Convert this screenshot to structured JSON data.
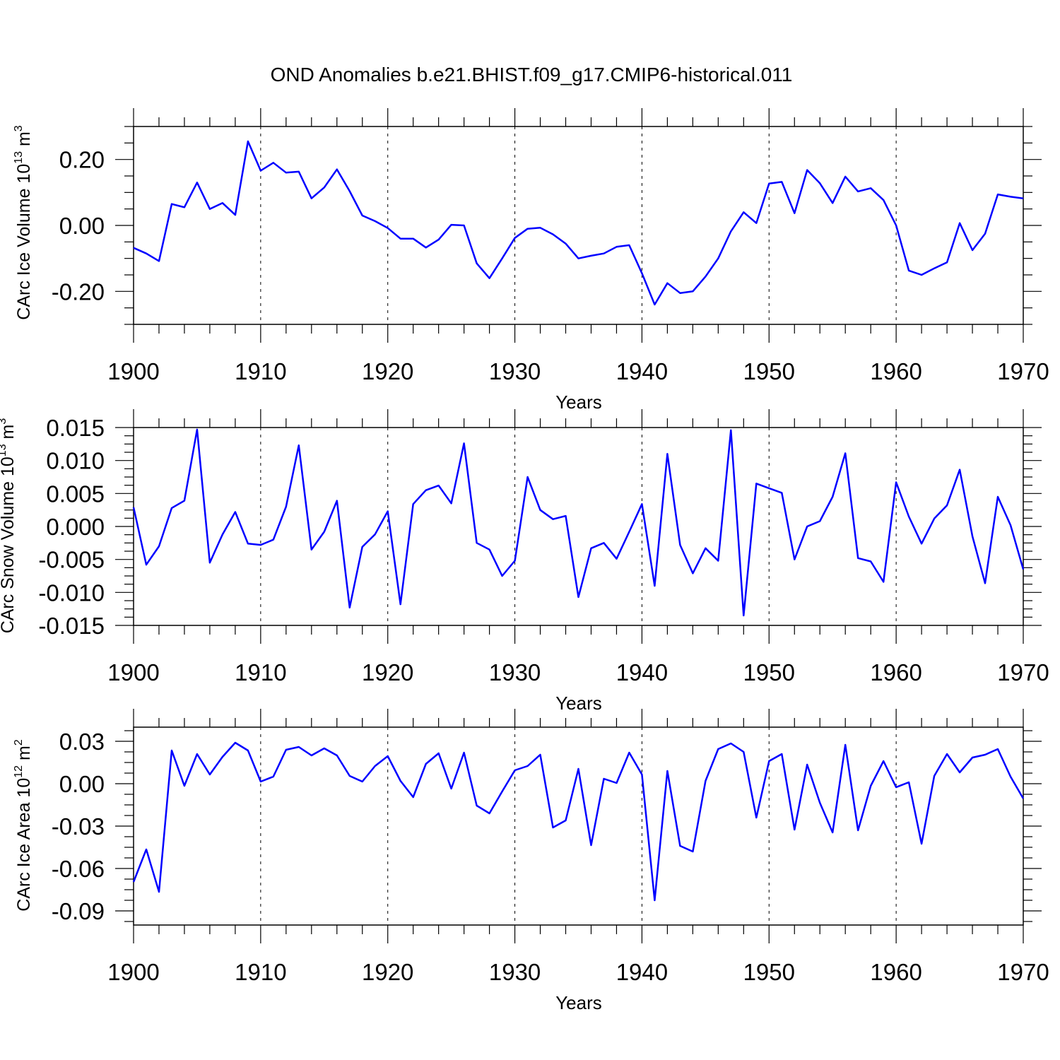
{
  "title": "OND Anomalies b.e21.BHIST.f09_g17.CMIP6-historical.011",
  "colors": {
    "line": "#0000ff",
    "axis": "#000000",
    "grid": "#000000",
    "background": "#ffffff"
  },
  "chart_data": [
    {
      "type": "line",
      "title": "OND Anomalies b.e21.BHIST.f09_g17.CMIP6-historical.011",
      "ylabel": "CArc Ice Volume 10",
      "ylabel_exp": "13",
      "ylabel_unit": "m",
      "ylabel_unit_exp": "3",
      "xlabel": "Years",
      "xlim": [
        1900,
        1970
      ],
      "ylim": [
        -0.3,
        0.3
      ],
      "x_ticks": [
        "1900",
        "1910",
        "1920",
        "1930",
        "1940",
        "1950",
        "1960",
        "1970"
      ],
      "y_ticks": [
        "0.20",
        "0.00",
        "-0.20"
      ],
      "y_tick_values": [
        0.2,
        0.0,
        -0.2
      ],
      "grid": "vertical dashed at decades",
      "x_start": 1900,
      "values": [
        -0.068,
        -0.085,
        -0.108,
        0.065,
        0.055,
        0.13,
        0.05,
        0.068,
        0.032,
        0.255,
        0.166,
        0.19,
        0.16,
        0.163,
        0.082,
        0.115,
        0.17,
        0.104,
        0.03,
        0.013,
        -0.008,
        -0.04,
        -0.04,
        -0.067,
        -0.043,
        0.002,
        0.0,
        -0.115,
        -0.16,
        -0.1,
        -0.038,
        -0.01,
        -0.007,
        -0.027,
        -0.055,
        -0.1,
        -0.092,
        -0.085,
        -0.065,
        -0.06,
        -0.145,
        -0.24,
        -0.175,
        -0.205,
        -0.2,
        -0.155,
        -0.1,
        -0.018,
        0.04,
        0.007,
        0.127,
        0.132,
        0.037,
        0.168,
        0.128,
        0.068,
        0.148,
        0.103,
        0.113,
        0.077,
        0.0,
        -0.137,
        -0.15,
        -0.13,
        -0.112,
        0.007,
        -0.075,
        -0.025,
        0.094,
        0.087,
        0.082
      ]
    },
    {
      "type": "line",
      "ylabel": "CArc Snow Volume 10",
      "ylabel_exp": "13",
      "ylabel_unit": "m",
      "ylabel_unit_exp": "3",
      "xlabel": "Years",
      "xlim": [
        1900,
        1970
      ],
      "ylim": [
        -0.015,
        0.015
      ],
      "x_ticks": [
        "1900",
        "1910",
        "1920",
        "1930",
        "1940",
        "1950",
        "1960",
        "1970"
      ],
      "y_ticks": [
        "0.015",
        "0.010",
        "0.005",
        "0.000",
        "-0.005",
        "-0.010",
        "-0.015"
      ],
      "y_tick_values": [
        0.015,
        0.01,
        0.005,
        0.0,
        -0.005,
        -0.01,
        -0.015
      ],
      "grid": "vertical dashed at decades",
      "x_start": 1900,
      "values": [
        0.0029,
        -0.0058,
        -0.003,
        0.0028,
        0.0039,
        0.0147,
        -0.0055,
        -0.0012,
        0.0022,
        -0.0026,
        -0.0028,
        -0.002,
        0.003,
        0.0123,
        -0.0035,
        -0.0008,
        0.0039,
        -0.0123,
        -0.0031,
        -0.0012,
        0.0023,
        -0.0118,
        0.0034,
        0.0055,
        0.0062,
        0.0035,
        0.0126,
        -0.0025,
        -0.0035,
        -0.0075,
        -0.0052,
        0.0075,
        0.0025,
        0.0011,
        0.0016,
        -0.0107,
        -0.0033,
        -0.0025,
        -0.0049,
        -0.0008,
        0.0034,
        -0.009,
        0.011,
        -0.0028,
        -0.0071,
        -0.0033,
        -0.0052,
        0.0146,
        -0.0135,
        0.0065,
        0.0058,
        0.0051,
        -0.005,
        0.0,
        0.0008,
        0.0045,
        0.0111,
        -0.0048,
        -0.0053,
        -0.0084,
        0.0067,
        0.0015,
        -0.0026,
        0.0012,
        0.0032,
        0.0086,
        -0.0015,
        -0.0086,
        0.0045,
        0.0002,
        -0.0065
      ]
    },
    {
      "type": "line",
      "ylabel": "CArc Ice Area 10",
      "ylabel_exp": "12",
      "ylabel_unit": "m",
      "ylabel_unit_exp": "2",
      "xlabel": "Years",
      "xlim": [
        1900,
        1970
      ],
      "ylim": [
        -0.1,
        0.04
      ],
      "x_ticks": [
        "1900",
        "1910",
        "1920",
        "1930",
        "1940",
        "1950",
        "1960",
        "1970"
      ],
      "y_ticks": [
        "0.03",
        "0.00",
        "-0.03",
        "-0.06",
        "-0.09"
      ],
      "y_tick_values": [
        0.03,
        0.0,
        -0.03,
        -0.06,
        -0.09
      ],
      "grid": "vertical dashed at decades",
      "x_start": 1900,
      "values": [
        -0.0695,
        -0.0465,
        -0.0765,
        0.0235,
        -0.0015,
        0.021,
        0.0065,
        0.019,
        0.029,
        0.0235,
        0.0015,
        0.005,
        0.024,
        0.026,
        0.02,
        0.025,
        0.02,
        0.0055,
        0.0015,
        0.0125,
        0.0195,
        0.002,
        -0.0095,
        0.014,
        0.0215,
        -0.0035,
        0.022,
        -0.0155,
        -0.021,
        -0.0055,
        0.0095,
        0.0125,
        0.0205,
        -0.031,
        -0.026,
        0.0105,
        -0.0435,
        0.0035,
        0.0005,
        0.022,
        0.0065,
        -0.0825,
        0.009,
        -0.044,
        -0.048,
        0.002,
        0.0245,
        0.0285,
        0.0225,
        -0.024,
        0.016,
        0.021,
        -0.0325,
        0.0135,
        -0.0135,
        -0.0345,
        0.0275,
        -0.033,
        -0.0015,
        0.016,
        -0.0025,
        0.001,
        -0.0425,
        0.0055,
        0.021,
        0.008,
        0.0185,
        0.0205,
        0.0245,
        0.005,
        -0.0105
      ]
    }
  ]
}
